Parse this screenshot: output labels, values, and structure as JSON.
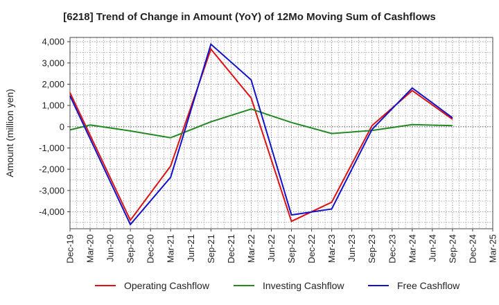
{
  "chart_data": {
    "type": "line",
    "title": "[6218]  Trend of Change in Amount (YoY) of 12Mo Moving Sum of Cashflows",
    "xlabel": "",
    "ylabel": "Amount (million yen)",
    "ylim": [
      -4800,
      4200
    ],
    "yticks": [
      4000,
      3000,
      2000,
      1000,
      0,
      -1000,
      -2000,
      -3000,
      -4000
    ],
    "ytick_labels": [
      "4,000",
      "3,000",
      "2,000",
      "1,000",
      "0",
      "-1,000",
      "-2,000",
      "-3,000",
      "-4,000"
    ],
    "categories": [
      "Dec-19",
      "Mar-20",
      "Jun-20",
      "Sep-20",
      "Dec-20",
      "Mar-21",
      "Jun-21",
      "Sep-21",
      "Dec-21",
      "Mar-22",
      "Jun-22",
      "Sep-22",
      "Dec-22",
      "Mar-23",
      "Jun-23",
      "Sep-23",
      "Dec-23",
      "Mar-24",
      "Jun-24",
      "Sep-24",
      "Dec-24",
      "Mar-25"
    ],
    "grid": true,
    "legend_position": "bottom",
    "series": [
      {
        "name": "Operating Cashflow",
        "color": "#dd1111",
        "values": [
          1600,
          null,
          null,
          -4400,
          null,
          -1850,
          null,
          3650,
          null,
          1350,
          null,
          -4450,
          null,
          -3550,
          null,
          50,
          null,
          1700,
          null,
          350,
          null,
          null
        ]
      },
      {
        "name": "Investing Cashflow",
        "color": "#228822",
        "values": [
          -150,
          80,
          null,
          -200,
          null,
          -520,
          null,
          230,
          null,
          830,
          null,
          200,
          null,
          -320,
          null,
          -180,
          null,
          100,
          null,
          50,
          null,
          null
        ]
      },
      {
        "name": "Free Cashflow",
        "color": "#1111cc",
        "values": [
          1450,
          null,
          null,
          -4600,
          null,
          -2380,
          null,
          3880,
          null,
          2200,
          null,
          -4150,
          null,
          -3870,
          null,
          -130,
          null,
          1820,
          null,
          420,
          null,
          null
        ]
      }
    ]
  }
}
